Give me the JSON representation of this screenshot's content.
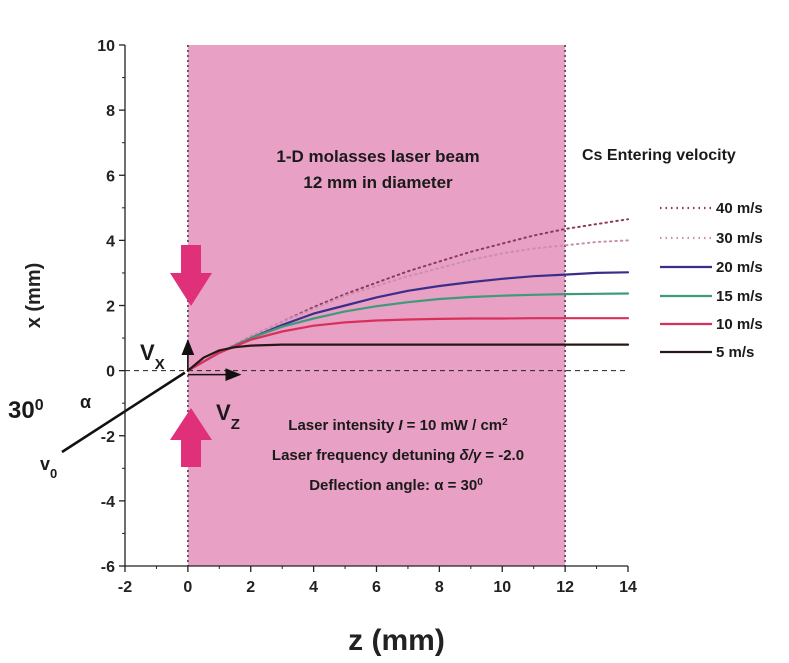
{
  "chart_data": {
    "type": "line",
    "xlabel": "z (mm)",
    "ylabel": "x (mm)",
    "xlim": [
      -2,
      14
    ],
    "ylim": [
      -6,
      10
    ],
    "x_ticks": [
      -2,
      0,
      2,
      4,
      6,
      8,
      10,
      12,
      14
    ],
    "y_ticks": [
      -6,
      -4,
      -2,
      0,
      2,
      4,
      6,
      8,
      10
    ],
    "x_tick_labels": [
      "-2",
      "0",
      "2",
      "4",
      "6",
      "8",
      "10",
      "12",
      "14"
    ],
    "y_tick_labels": [
      "-6",
      "-4",
      "-2",
      "0",
      "2",
      "4",
      "6",
      "8",
      "10"
    ],
    "beam_region": {
      "z_start": 0,
      "z_end": 12,
      "color": "#e8a0c4"
    },
    "beam_label_line1": "1-D molasses laser beam",
    "beam_label_line2": "12 mm in diameter",
    "legend_title": "Cs Entering velocity",
    "series": [
      {
        "name": "40 m/s",
        "color": "#8a3a5a",
        "dash": "dotted",
        "x": [
          0,
          1,
          2,
          3,
          4,
          5,
          6,
          7,
          8,
          9,
          10,
          11,
          12,
          13,
          14
        ],
        "y": [
          0,
          0.55,
          1.05,
          1.5,
          1.95,
          2.35,
          2.7,
          3.05,
          3.35,
          3.65,
          3.9,
          4.15,
          4.35,
          4.5,
          4.65
        ]
      },
      {
        "name": "30 m/s",
        "color": "#c890b0",
        "dash": "dotted",
        "x": [
          0,
          1,
          2,
          3,
          4,
          5,
          6,
          7,
          8,
          9,
          10,
          11,
          12,
          13,
          14
        ],
        "y": [
          0,
          0.55,
          1.05,
          1.5,
          1.9,
          2.3,
          2.6,
          2.9,
          3.15,
          3.4,
          3.6,
          3.75,
          3.85,
          3.95,
          4.0
        ]
      },
      {
        "name": "20 m/s",
        "color": "#3a2e8a",
        "dash": "solid",
        "x": [
          0,
          1,
          2,
          3,
          4,
          5,
          6,
          7,
          8,
          9,
          10,
          11,
          12,
          13,
          14
        ],
        "y": [
          0,
          0.55,
          1.0,
          1.4,
          1.75,
          2.0,
          2.25,
          2.45,
          2.6,
          2.72,
          2.82,
          2.9,
          2.95,
          3.0,
          3.02
        ]
      },
      {
        "name": "15 m/s",
        "color": "#3f9a7a",
        "dash": "solid",
        "x": [
          0,
          1,
          2,
          3,
          4,
          5,
          6,
          7,
          8,
          9,
          10,
          11,
          12,
          13,
          14
        ],
        "y": [
          0,
          0.55,
          1.0,
          1.35,
          1.6,
          1.82,
          1.98,
          2.1,
          2.2,
          2.26,
          2.3,
          2.33,
          2.35,
          2.36,
          2.37
        ]
      },
      {
        "name": "10 m/s",
        "color": "#d8305a",
        "dash": "solid",
        "x": [
          0,
          1,
          2,
          3,
          4,
          5,
          6,
          7,
          8,
          9,
          10,
          11,
          12,
          13,
          14
        ],
        "y": [
          0,
          0.55,
          0.95,
          1.2,
          1.38,
          1.48,
          1.54,
          1.57,
          1.59,
          1.6,
          1.6,
          1.61,
          1.61,
          1.61,
          1.61
        ]
      },
      {
        "name": "5 m/s",
        "color": "#2a1616",
        "dash": "solid",
        "x": [
          0,
          0.5,
          1,
          1.5,
          2,
          3,
          4,
          5,
          6,
          8,
          10,
          12,
          14
        ],
        "y": [
          0,
          0.4,
          0.62,
          0.72,
          0.77,
          0.8,
          0.8,
          0.8,
          0.8,
          0.8,
          0.8,
          0.8,
          0.8
        ]
      }
    ],
    "annotations": {
      "vx_label": "V",
      "vx_sub": "X",
      "vz_label": "V",
      "vz_sub": "Z",
      "v0_label": "v",
      "v0_sub": "0",
      "angle_label": "30",
      "angle_sup": "0",
      "alpha_label": "α",
      "intensity_prefix": "Laser intensity ",
      "intensity_var": "I",
      "intensity_suffix": " = 10 mW / cm",
      "intensity_sup": "2",
      "detuning_prefix": "Laser frequency detuning ",
      "detuning_var": "δ/γ",
      "detuning_suffix": " = -2.0",
      "deflection_prefix": "Deflection angle: ",
      "deflection_var": "α",
      "deflection_suffix": " = 30",
      "deflection_sup": "0"
    },
    "arrow_color": "#e0307a"
  }
}
